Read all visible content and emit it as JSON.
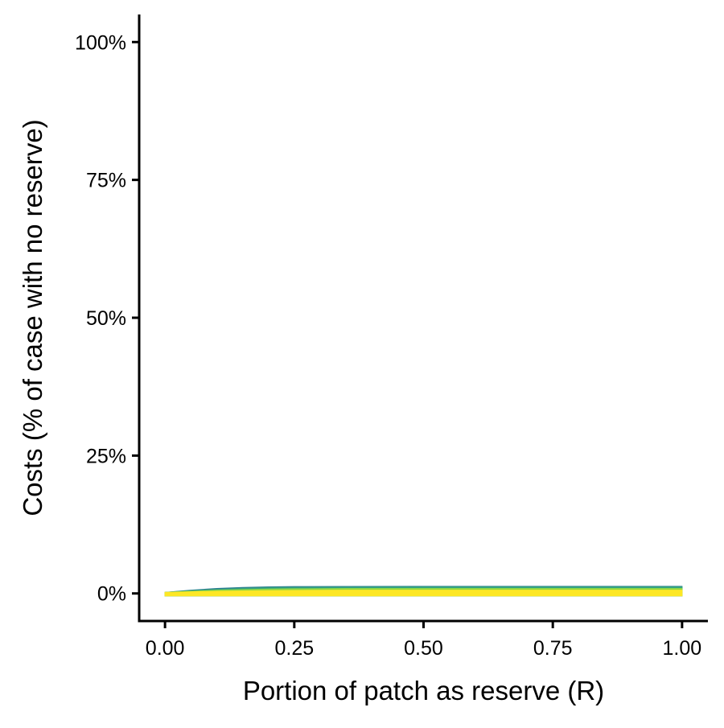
{
  "chart_data": {
    "type": "area",
    "title": "",
    "xlabel": "Portion of patch as reserve (R)",
    "ylabel": "Costs (% of case with no reserve)",
    "xlim": [
      -0.05,
      1.05
    ],
    "ylim": [
      -0.05,
      1.05
    ],
    "x_ticks": [
      0,
      0.25,
      0.5,
      0.75,
      1
    ],
    "x_tick_labels": [
      "0.00",
      "0.25",
      "0.50",
      "0.75",
      "1.00"
    ],
    "y_ticks": [
      0,
      0.25,
      0.5,
      0.75,
      1
    ],
    "y_tick_labels": [
      "0%",
      "25%",
      "50%",
      "75%",
      "100%"
    ],
    "grid": false,
    "legend": "none",
    "x": [
      0,
      0.05,
      0.1,
      0.15,
      0.2,
      0.25,
      0.35,
      0.5,
      0.65,
      0.8,
      1
    ],
    "series": [
      {
        "color": "#2c7f8e",
        "values": [
          0.002,
          0.006,
          0.009,
          0.011,
          0.012,
          0.0125,
          0.0128,
          0.013,
          0.013,
          0.013,
          0.013
        ]
      },
      {
        "color": "#35a283",
        "values": [
          0.002,
          0.005,
          0.007,
          0.009,
          0.0105,
          0.011,
          0.0115,
          0.012,
          0.012,
          0.012,
          0.012
        ]
      },
      {
        "color": "#8fd744",
        "values": [
          0.002,
          0.004,
          0.006,
          0.007,
          0.008,
          0.0085,
          0.009,
          0.009,
          0.009,
          0.009,
          0.009
        ]
      },
      {
        "color": "#fde725",
        "values": [
          0.002,
          0.003,
          0.004,
          0.0045,
          0.005,
          0.0055,
          0.006,
          0.006,
          0.006,
          0.006,
          0.006
        ]
      }
    ]
  }
}
